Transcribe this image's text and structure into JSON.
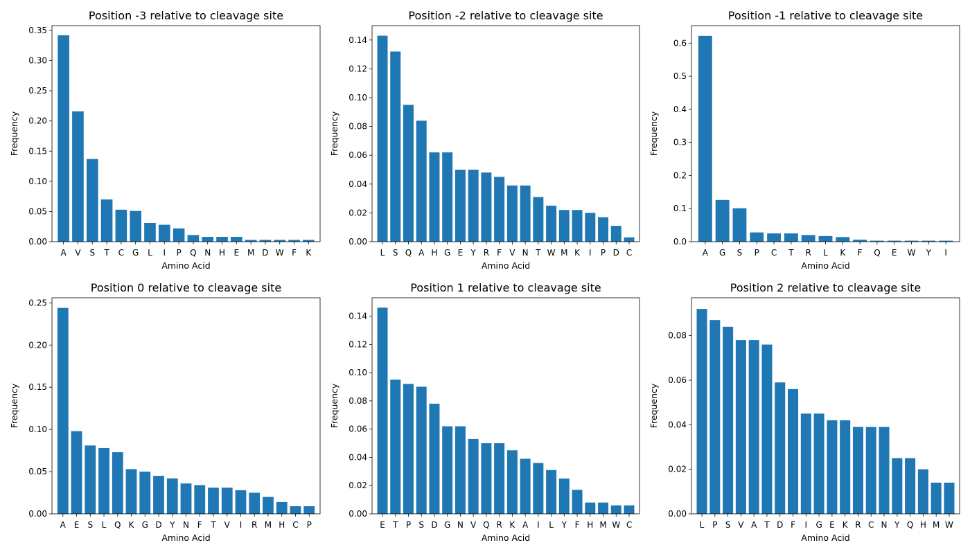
{
  "bar_color": "#1f77b4",
  "chart_data": [
    {
      "type": "bar",
      "title": "Position -3 relative to cleavage site",
      "xlabel": "Amino Acid",
      "ylabel": "Frequency",
      "ylim": [
        0,
        0.358
      ],
      "yticks": [
        "0.00",
        "0.05",
        "0.10",
        "0.15",
        "0.20",
        "0.25",
        "0.30",
        "0.35"
      ],
      "categories": [
        "A",
        "V",
        "S",
        "T",
        "C",
        "G",
        "L",
        "I",
        "P",
        "Q",
        "N",
        "H",
        "E",
        "M",
        "D",
        "W",
        "F",
        "K"
      ],
      "values": [
        0.342,
        0.216,
        0.137,
        0.07,
        0.053,
        0.051,
        0.031,
        0.028,
        0.022,
        0.011,
        0.008,
        0.008,
        0.008,
        0.003,
        0.003,
        0.003,
        0.003,
        0.003
      ],
      "grid": false
    },
    {
      "type": "bar",
      "title": "Position -2 relative to cleavage site",
      "xlabel": "Amino Acid",
      "ylabel": "Frequency",
      "ylim": [
        0,
        0.15
      ],
      "yticks": [
        "0.00",
        "0.02",
        "0.04",
        "0.06",
        "0.08",
        "0.10",
        "0.12",
        "0.14"
      ],
      "categories": [
        "L",
        "S",
        "Q",
        "A",
        "H",
        "G",
        "E",
        "Y",
        "R",
        "F",
        "V",
        "N",
        "T",
        "W",
        "M",
        "K",
        "I",
        "P",
        "D",
        "C"
      ],
      "values": [
        0.143,
        0.132,
        0.095,
        0.084,
        0.062,
        0.062,
        0.05,
        0.05,
        0.048,
        0.045,
        0.039,
        0.039,
        0.031,
        0.025,
        0.022,
        0.022,
        0.02,
        0.017,
        0.011,
        0.003
      ],
      "grid": false
    },
    {
      "type": "bar",
      "title": "Position -1 relative to cleavage site",
      "xlabel": "Amino Acid",
      "ylabel": "Frequency",
      "ylim": [
        0,
        0.653
      ],
      "yticks": [
        "0.0",
        "0.1",
        "0.2",
        "0.3",
        "0.4",
        "0.5",
        "0.6"
      ],
      "categories": [
        "A",
        "G",
        "S",
        "P",
        "C",
        "T",
        "R",
        "L",
        "K",
        "F",
        "Q",
        "E",
        "W",
        "Y",
        "I"
      ],
      "values": [
        0.622,
        0.126,
        0.101,
        0.028,
        0.025,
        0.025,
        0.02,
        0.017,
        0.014,
        0.006,
        0.003,
        0.003,
        0.003,
        0.003,
        0.003
      ],
      "grid": false
    },
    {
      "type": "bar",
      "title": "Position 0 relative to cleavage site",
      "xlabel": "Amino Acid",
      "ylabel": "Frequency",
      "ylim": [
        0,
        0.256
      ],
      "yticks": [
        "0.00",
        "0.05",
        "0.10",
        "0.15",
        "0.20",
        "0.25"
      ],
      "categories": [
        "A",
        "E",
        "S",
        "L",
        "Q",
        "K",
        "G",
        "D",
        "Y",
        "N",
        "F",
        "T",
        "V",
        "I",
        "R",
        "M",
        "H",
        "C",
        "P"
      ],
      "values": [
        0.244,
        0.098,
        0.081,
        0.078,
        0.073,
        0.053,
        0.05,
        0.045,
        0.042,
        0.036,
        0.034,
        0.031,
        0.031,
        0.028,
        0.025,
        0.02,
        0.014,
        0.009,
        0.009
      ],
      "grid": false
    },
    {
      "type": "bar",
      "title": "Position 1 relative to cleavage site",
      "xlabel": "Amino Acid",
      "ylabel": "Frequency",
      "ylim": [
        0,
        0.153
      ],
      "yticks": [
        "0.00",
        "0.02",
        "0.04",
        "0.06",
        "0.08",
        "0.10",
        "0.12",
        "0.14"
      ],
      "categories": [
        "E",
        "T",
        "P",
        "S",
        "D",
        "G",
        "N",
        "V",
        "Q",
        "R",
        "K",
        "A",
        "I",
        "L",
        "Y",
        "F",
        "H",
        "M",
        "W",
        "C"
      ],
      "values": [
        0.146,
        0.095,
        0.092,
        0.09,
        0.078,
        0.062,
        0.062,
        0.053,
        0.05,
        0.05,
        0.045,
        0.039,
        0.036,
        0.031,
        0.025,
        0.017,
        0.008,
        0.008,
        0.006,
        0.006
      ],
      "grid": false
    },
    {
      "type": "bar",
      "title": "Position 2 relative to cleavage site",
      "xlabel": "Amino Acid",
      "ylabel": "Frequency",
      "ylim": [
        0,
        0.097
      ],
      "yticks": [
        "0.00",
        "0.02",
        "0.04",
        "0.06",
        "0.08"
      ],
      "categories": [
        "L",
        "P",
        "S",
        "V",
        "A",
        "T",
        "D",
        "F",
        "I",
        "G",
        "E",
        "K",
        "R",
        "C",
        "N",
        "Y",
        "Q",
        "H",
        "M",
        "W"
      ],
      "values": [
        0.092,
        0.087,
        0.084,
        0.078,
        0.078,
        0.076,
        0.059,
        0.056,
        0.045,
        0.045,
        0.042,
        0.042,
        0.039,
        0.039,
        0.039,
        0.025,
        0.025,
        0.02,
        0.014,
        0.014
      ],
      "grid": false
    }
  ]
}
